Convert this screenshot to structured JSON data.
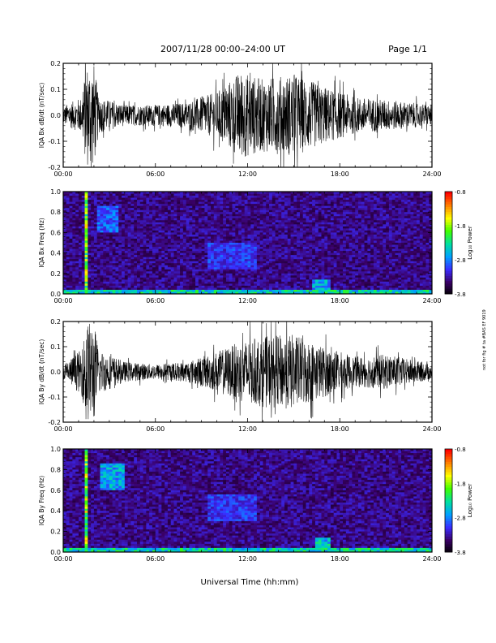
{
  "header": {
    "title": "2007/11/28  00:00–24:00 UT",
    "page": "Page 1/1"
  },
  "side_note": "not for fig # ta #BAS EF 9019",
  "x_axis": {
    "label": "Universal Time (hh:mm)",
    "range_hours": [
      0,
      24
    ],
    "ticks": [
      "00:00",
      "06:00",
      "12:00",
      "18:00",
      "24:00"
    ]
  },
  "colorbar": {
    "label": "Log₁₀ Power",
    "label_text": "Log₁₀ Power",
    "ticks": [
      "-0.8",
      "-1.8",
      "-2.8",
      "-3.8"
    ],
    "range": [
      -3.8,
      -0.8
    ],
    "colors": [
      "#000000",
      "#3a0066",
      "#3a2cff",
      "#00a0ff",
      "#00e0a0",
      "#40ff00",
      "#ffff00",
      "#ff8000",
      "#ff0000"
    ]
  },
  "chart_data": [
    {
      "type": "line",
      "ylabel": "IQA Bx dB/dt (nT/sec)",
      "ylim": [
        -0.2,
        0.2
      ],
      "yticks": [
        "0.2",
        "0.1",
        "0.0",
        "-0.1",
        "-0.2"
      ],
      "color": "#000000",
      "envelope": [
        {
          "t": 0.0,
          "amp": 0.035
        },
        {
          "t": 1.2,
          "amp": 0.07
        },
        {
          "t": 1.5,
          "amp": 0.2
        },
        {
          "t": 2.0,
          "amp": 0.2
        },
        {
          "t": 2.3,
          "amp": 0.07
        },
        {
          "t": 4.0,
          "amp": 0.04
        },
        {
          "t": 6.0,
          "amp": 0.04
        },
        {
          "t": 8.0,
          "amp": 0.05
        },
        {
          "t": 10.0,
          "amp": 0.09
        },
        {
          "t": 11.5,
          "amp": 0.17
        },
        {
          "t": 13.0,
          "amp": 0.14
        },
        {
          "t": 15.0,
          "amp": 0.16
        },
        {
          "t": 17.0,
          "amp": 0.11
        },
        {
          "t": 19.0,
          "amp": 0.07
        },
        {
          "t": 21.0,
          "amp": 0.06
        },
        {
          "t": 24.0,
          "amp": 0.04
        }
      ]
    },
    {
      "type": "heatmap",
      "ylabel": "IQA Bx Freq (Hz)",
      "ylim": [
        0.0,
        1.0
      ],
      "yticks": [
        "1.0",
        "0.8",
        "0.6",
        "0.4",
        "0.2",
        "0.0"
      ],
      "colorbar_label": "Log₁₀ Power",
      "features": [
        {
          "kind": "band",
          "t": [
            0,
            24
          ],
          "f": [
            0.0,
            0.04
          ],
          "level": 0.55
        },
        {
          "kind": "spike",
          "t": [
            1.4,
            1.6
          ],
          "f": [
            0.0,
            1.0
          ],
          "level": 0.75
        },
        {
          "kind": "blob",
          "t": [
            2.3,
            3.5
          ],
          "f": [
            0.6,
            0.85
          ],
          "level": 0.35
        },
        {
          "kind": "blob",
          "t": [
            9.5,
            12.5
          ],
          "f": [
            0.25,
            0.5
          ],
          "level": 0.3
        },
        {
          "kind": "spike",
          "t": [
            15.9,
            16.0
          ],
          "f": [
            0.0,
            0.6
          ],
          "level": 0.25
        },
        {
          "kind": "blob",
          "t": [
            16.3,
            17.3
          ],
          "f": [
            0.05,
            0.13
          ],
          "level": 0.45
        }
      ]
    },
    {
      "type": "line",
      "ylabel": "IQA By dB/dt (nT/sec)",
      "ylim": [
        -0.2,
        0.2
      ],
      "yticks": [
        "0.2",
        "0.1",
        "0.0",
        "-0.1",
        "-0.2"
      ],
      "color": "#000000",
      "envelope": [
        {
          "t": 0.0,
          "amp": 0.03
        },
        {
          "t": 1.2,
          "amp": 0.09
        },
        {
          "t": 1.5,
          "amp": 0.2
        },
        {
          "t": 2.0,
          "amp": 0.2
        },
        {
          "t": 2.3,
          "amp": 0.09
        },
        {
          "t": 4.0,
          "amp": 0.04
        },
        {
          "t": 6.0,
          "amp": 0.03
        },
        {
          "t": 8.0,
          "amp": 0.04
        },
        {
          "t": 10.0,
          "amp": 0.08
        },
        {
          "t": 11.5,
          "amp": 0.12
        },
        {
          "t": 13.0,
          "amp": 0.14
        },
        {
          "t": 15.0,
          "amp": 0.15
        },
        {
          "t": 17.0,
          "amp": 0.1
        },
        {
          "t": 19.0,
          "amp": 0.06
        },
        {
          "t": 21.0,
          "amp": 0.07
        },
        {
          "t": 24.0,
          "amp": 0.03
        }
      ]
    },
    {
      "type": "heatmap",
      "ylabel": "IQA By Freq (Hz)",
      "ylim": [
        0.0,
        1.0
      ],
      "yticks": [
        "1.0",
        "0.8",
        "0.6",
        "0.4",
        "0.2",
        "0.0"
      ],
      "colorbar_label": "Log₁₀ Power",
      "features": [
        {
          "kind": "band",
          "t": [
            0,
            24
          ],
          "f": [
            0.0,
            0.05
          ],
          "level": 0.55
        },
        {
          "kind": "spike",
          "t": [
            1.4,
            1.6
          ],
          "f": [
            0.0,
            1.0
          ],
          "level": 0.75
        },
        {
          "kind": "blob",
          "t": [
            2.5,
            4.0
          ],
          "f": [
            0.6,
            0.85
          ],
          "level": 0.45
        },
        {
          "kind": "blob",
          "t": [
            9.5,
            12.5
          ],
          "f": [
            0.3,
            0.55
          ],
          "level": 0.3
        },
        {
          "kind": "spike",
          "t": [
            15.9,
            16.0
          ],
          "f": [
            0.0,
            0.6
          ],
          "level": 0.25
        },
        {
          "kind": "blob",
          "t": [
            16.4,
            17.4
          ],
          "f": [
            0.05,
            0.13
          ],
          "level": 0.5
        }
      ]
    }
  ]
}
